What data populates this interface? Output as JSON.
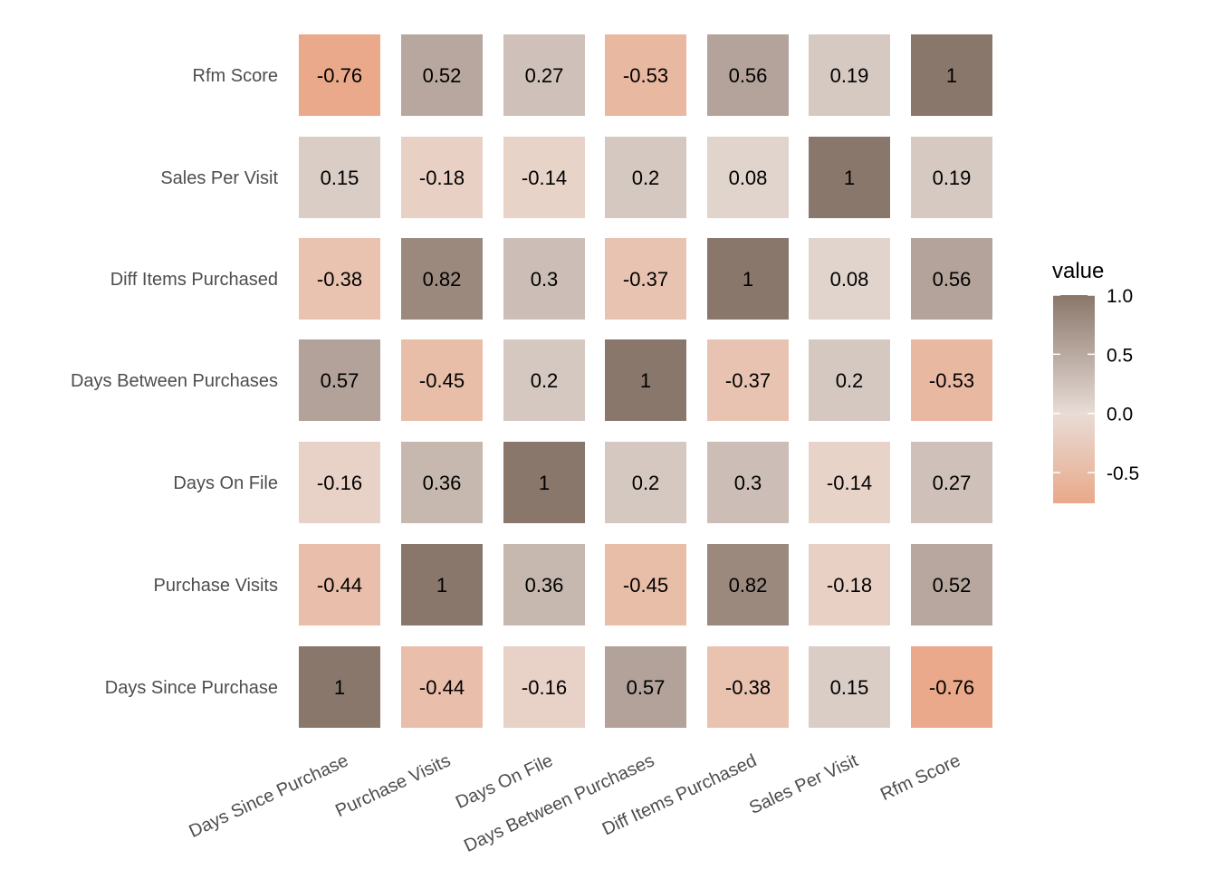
{
  "chart_data": {
    "type": "heatmap",
    "title": "",
    "xlabel": "",
    "ylabel": "",
    "variables": [
      "Days Since Purchase",
      "Purchase Visits",
      "Days On File",
      "Days Between Purchases",
      "Diff Items Purchased",
      "Sales Per Visit",
      "Rfm Score"
    ],
    "x_categories": [
      "Days Since Purchase",
      "Purchase Visits",
      "Days On File",
      "Days Between Purchases",
      "Diff Items Purchased",
      "Sales Per Visit",
      "Rfm Score"
    ],
    "y_categories_bottom_to_top": [
      "Days Since Purchase",
      "Purchase Visits",
      "Days On File",
      "Days Between Purchases",
      "Diff Items Purchased",
      "Sales Per Visit",
      "Rfm Score"
    ],
    "matrix": [
      [
        1,
        -0.44,
        -0.16,
        0.57,
        -0.38,
        0.15,
        -0.76
      ],
      [
        -0.44,
        1,
        0.36,
        -0.45,
        0.82,
        -0.18,
        0.52
      ],
      [
        -0.16,
        0.36,
        1,
        0.2,
        0.3,
        -0.14,
        0.27
      ],
      [
        0.57,
        -0.45,
        0.2,
        1,
        -0.37,
        0.2,
        -0.53
      ],
      [
        -0.38,
        0.82,
        0.3,
        -0.37,
        1,
        0.08,
        0.56
      ],
      [
        0.15,
        -0.18,
        -0.14,
        0.2,
        0.08,
        1,
        0.19
      ],
      [
        -0.76,
        0.52,
        0.27,
        -0.53,
        0.56,
        0.19,
        1
      ]
    ],
    "legend": {
      "title": "value",
      "placement": "right",
      "ticks": [
        1.0,
        0.5,
        0.0,
        -0.5
      ],
      "tick_labels": [
        "1.0",
        "0.5",
        "0.0",
        "-0.5"
      ],
      "range": [
        -0.76,
        1
      ]
    },
    "colors": {
      "low": "#e9a98a",
      "mid": "#e8dcd6",
      "high": "#8a776b"
    }
  }
}
